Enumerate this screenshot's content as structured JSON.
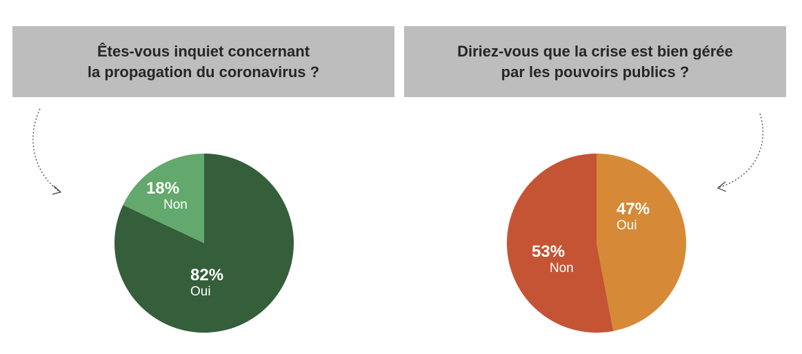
{
  "chart_data": [
    {
      "type": "pie",
      "title": "Êtes-vous inquiet concernant\nla propagation du coronavirus ?",
      "slices": [
        {
          "label": "Oui",
          "value": 82,
          "display": "82%",
          "color": "#355e3b"
        },
        {
          "label": "Non",
          "value": 18,
          "display": "18%",
          "color": "#63a86c"
        }
      ]
    },
    {
      "type": "pie",
      "title": "Diriez-vous que la crise est bien gérée\npar les pouvoirs publics ?",
      "slices": [
        {
          "label": "Oui",
          "value": 47,
          "display": "47%",
          "color": "#d68a37"
        },
        {
          "label": "Non",
          "value": 53,
          "display": "53%",
          "color": "#c55434"
        }
      ]
    }
  ]
}
